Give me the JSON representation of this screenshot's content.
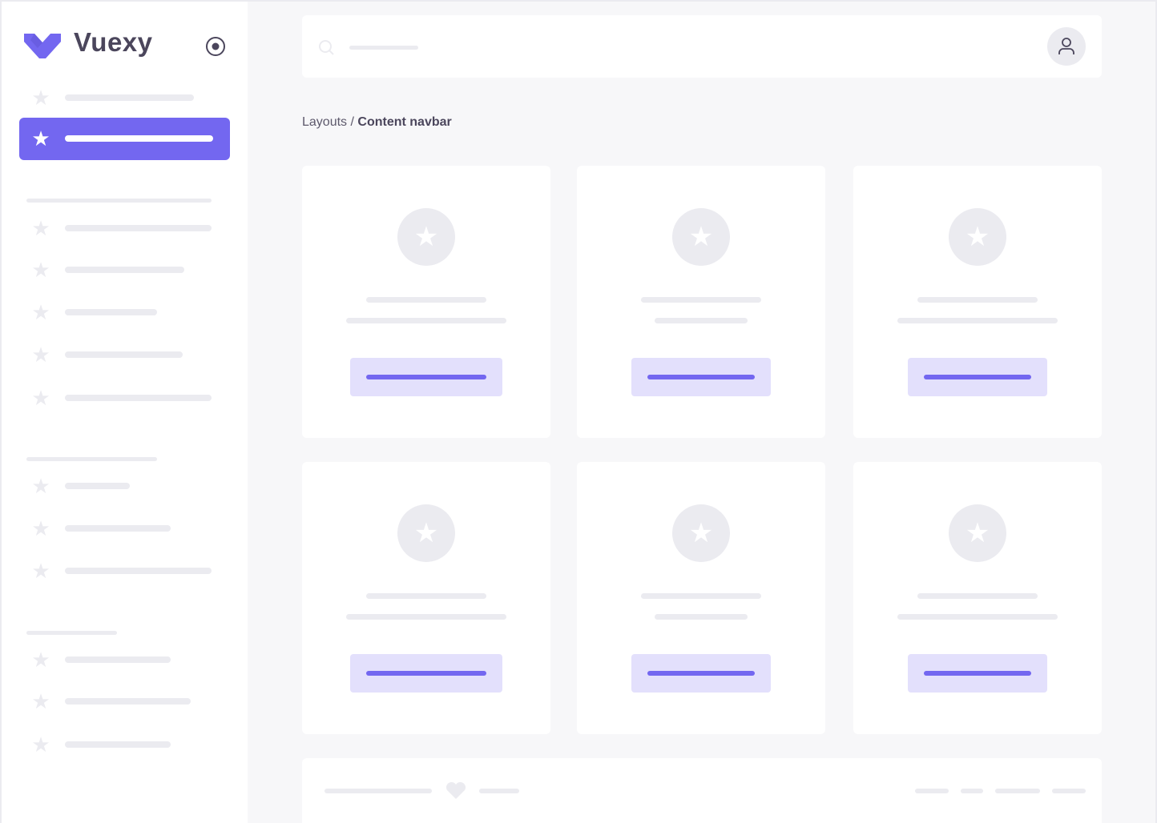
{
  "brand": {
    "name": "Vuexy",
    "logo_color": "#7367f0"
  },
  "breadcrumb": {
    "parent": "Layouts",
    "separator": " / ",
    "current": "Content navbar"
  },
  "colors": {
    "primary": "#7367f0",
    "primary_light": "#e3e0fc",
    "skeleton": "#ebebf0",
    "background": "#f7f7f9",
    "text": "#4b465c"
  },
  "icons": {
    "sidebar_toggle": "radio-circle-icon",
    "search": "search-icon",
    "user": "user-icon",
    "menu_item": "star-icon",
    "card": "star-icon",
    "footer": "heart-icon"
  }
}
